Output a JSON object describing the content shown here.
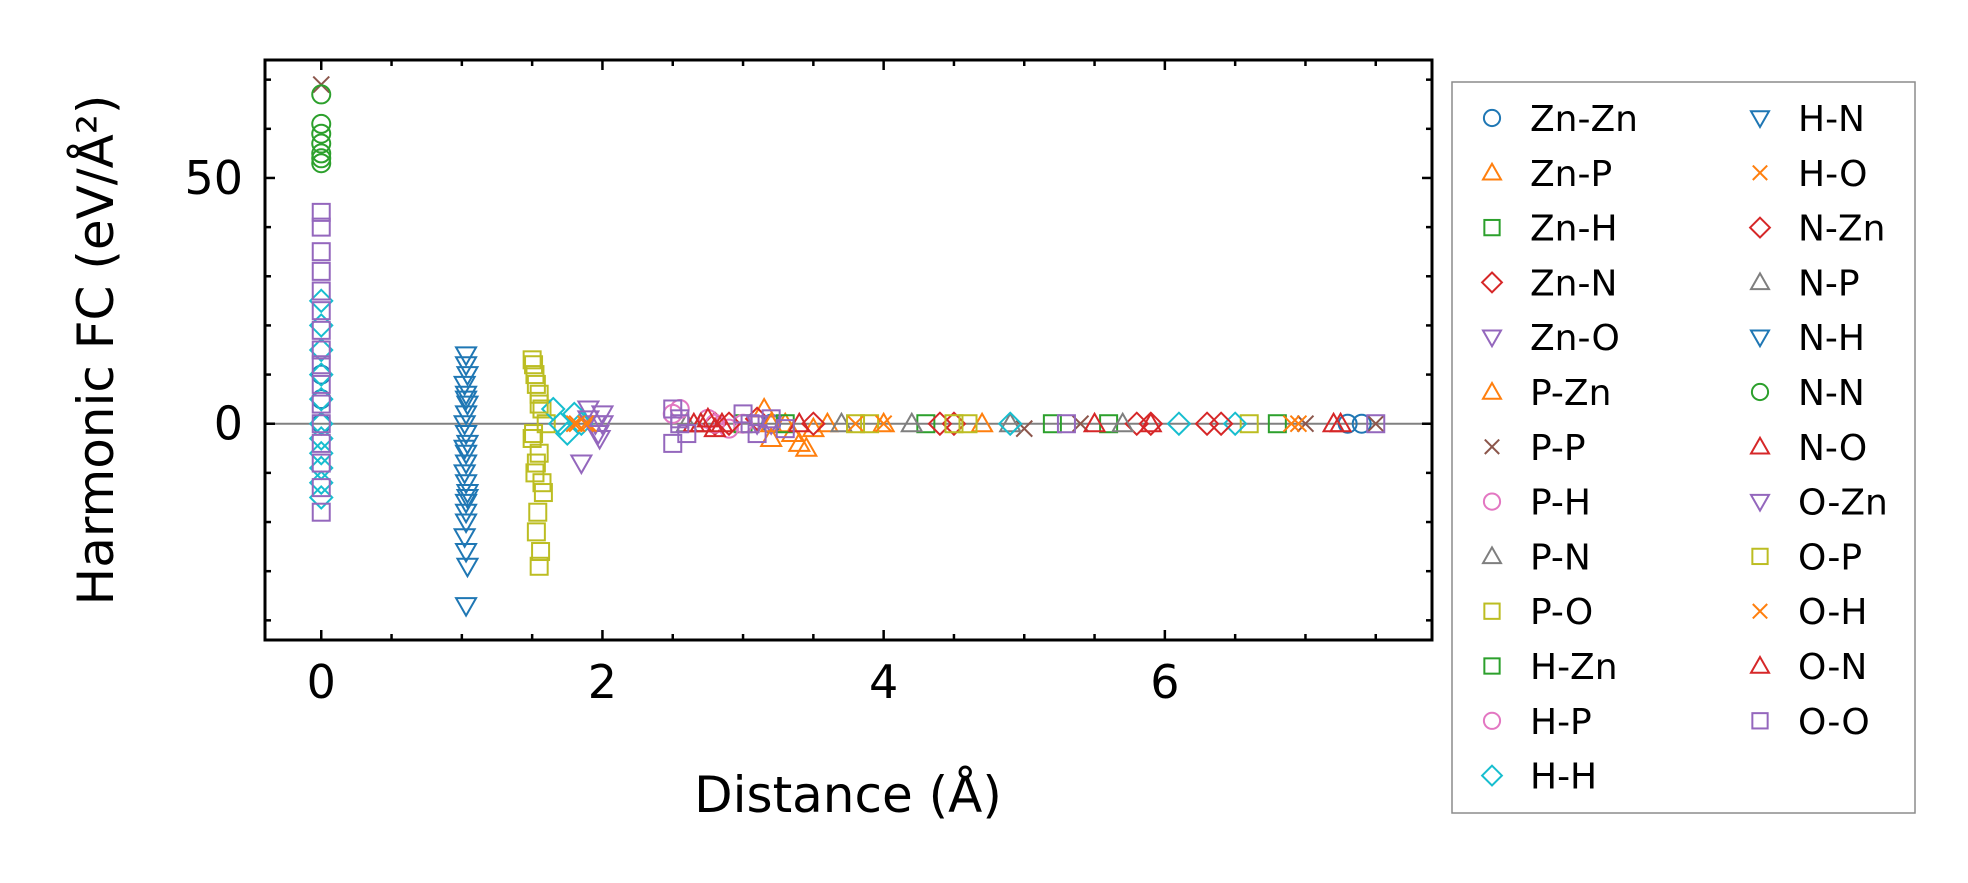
{
  "chart_data": {
    "type": "scatter",
    "title": "",
    "xlabel": "Distance (Å)",
    "ylabel": "Harmonic FC (eV/Å²)",
    "xlim": [
      -0.4,
      7.9
    ],
    "ylim": [
      -44,
      74
    ],
    "xticks": [
      0,
      2,
      4,
      6
    ],
    "xtick_labels": [
      "0",
      "2",
      "4",
      "6"
    ],
    "yticks": [
      0,
      50
    ],
    "ytick_labels": [
      "0",
      "50"
    ],
    "reference_line_y": 0,
    "legend_position": "outside-right",
    "series": [
      {
        "name": "Zn-Zn",
        "marker": "circle",
        "color": "#1f77b4",
        "x": [
          0.0,
          0.0,
          0.0,
          3.2,
          7.3,
          7.4
        ],
        "y": [
          10,
          0,
          5,
          0,
          0,
          0
        ]
      },
      {
        "name": "Zn-P",
        "marker": "triangle-up",
        "color": "#ff7f0e",
        "x": [
          3.15,
          3.2,
          3.3,
          3.4,
          3.5,
          4.0
        ],
        "y": [
          3,
          -3,
          0,
          -4,
          -1,
          0
        ]
      },
      {
        "name": "Zn-H",
        "marker": "square",
        "color": "#2ca02c",
        "x": [
          3.0,
          4.3,
          5.6,
          6.8
        ],
        "y": [
          0,
          0,
          0,
          0
        ]
      },
      {
        "name": "Zn-N",
        "marker": "diamond",
        "color": "#d62728",
        "x": [
          2.8,
          3.1,
          4.5,
          5.9,
          6.3
        ],
        "y": [
          0,
          1,
          0,
          0,
          0
        ]
      },
      {
        "name": "Zn-O",
        "marker": "triangle-down",
        "color": "#9467bd",
        "x": [
          1.9,
          1.95,
          1.98,
          2.0,
          1.85,
          3.2
        ],
        "y": [
          3,
          0,
          -3,
          2,
          -8,
          0
        ]
      },
      {
        "name": "P-Zn",
        "marker": "triangle-up",
        "color": "#ff7f0e",
        "x": [
          3.2,
          3.35,
          3.45,
          3.6,
          4.7
        ],
        "y": [
          0,
          -2,
          -5,
          0,
          0
        ]
      },
      {
        "name": "P-P",
        "marker": "x",
        "color": "#8c564b",
        "x": [
          0.0,
          5.0,
          5.4,
          7.0,
          7.5
        ],
        "y": [
          69,
          -1,
          0,
          0,
          0
        ]
      },
      {
        "name": "P-H",
        "marker": "circle",
        "color": "#e377c2",
        "x": [
          2.5,
          2.8,
          2.9
        ],
        "y": [
          2,
          0,
          -1
        ]
      },
      {
        "name": "P-N",
        "marker": "triangle-up",
        "color": "#7f7f7f",
        "x": [
          2.6,
          3.7,
          4.9
        ],
        "y": [
          0,
          0,
          0
        ]
      },
      {
        "name": "P-O",
        "marker": "square",
        "color": "#bcbd22",
        "x": [
          1.5,
          1.52,
          1.55,
          1.57,
          1.6,
          1.5,
          1.55,
          1.52,
          1.58,
          1.54,
          1.53,
          1.56,
          1.55,
          3.9,
          4.6,
          6.6
        ],
        "y": [
          13,
          10,
          6,
          3,
          0,
          -3,
          -6,
          -10,
          -14,
          -18,
          -22,
          -26,
          -29,
          0,
          0,
          0
        ]
      },
      {
        "name": "H-Zn",
        "marker": "square",
        "color": "#2ca02c",
        "x": [
          3.3,
          5.2
        ],
        "y": [
          0,
          0
        ]
      },
      {
        "name": "H-P",
        "marker": "circle",
        "color": "#e377c2",
        "x": [
          2.55,
          2.75,
          3.0
        ],
        "y": [
          3,
          1,
          0
        ]
      },
      {
        "name": "H-H",
        "marker": "diamond",
        "color": "#17becf",
        "x": [
          0.0,
          0.0,
          0.0,
          0.0,
          0.0,
          0.0,
          0.0,
          0.0,
          0.0,
          0.0,
          0.0,
          1.65,
          1.7,
          1.75,
          1.8,
          1.85,
          4.9,
          6.1,
          6.5
        ],
        "y": [
          25,
          20,
          15,
          10,
          5,
          0,
          -3,
          -6,
          -9,
          -12,
          -15,
          3,
          0,
          -2,
          2,
          0,
          0,
          0,
          0
        ]
      },
      {
        "name": "H-N",
        "marker": "triangle-down",
        "color": "#1f77b4",
        "x": [
          1.03,
          1.03,
          1.04,
          1.02,
          1.03,
          1.04,
          1.03,
          1.02,
          1.03,
          1.04,
          1.03,
          1.03,
          1.02,
          1.03,
          1.04,
          1.03,
          1.03,
          1.03,
          1.02,
          1.03,
          1.04,
          1.03
        ],
        "y": [
          14,
          12,
          10,
          8,
          6,
          4,
          2,
          0,
          -2,
          -4,
          -6,
          -8,
          -10,
          -12,
          -14,
          -16,
          -18,
          -20,
          -23,
          -26,
          -29,
          -37
        ]
      },
      {
        "name": "H-O",
        "marker": "x",
        "color": "#ff7f0e",
        "x": [
          1.8,
          1.9,
          3.8,
          6.9
        ],
        "y": [
          0,
          0,
          0,
          0
        ]
      },
      {
        "name": "N-Zn",
        "marker": "diamond",
        "color": "#d62728",
        "x": [
          2.9,
          3.5,
          4.4,
          5.8,
          6.4
        ],
        "y": [
          0,
          0,
          0,
          0,
          0
        ]
      },
      {
        "name": "N-P",
        "marker": "triangle-up",
        "color": "#7f7f7f",
        "x": [
          2.7,
          4.2,
          5.7
        ],
        "y": [
          0,
          0,
          0
        ]
      },
      {
        "name": "N-H",
        "marker": "triangle-down",
        "color": "#1f77b4",
        "x": [
          1.02,
          1.03,
          1.04
        ],
        "y": [
          -5,
          5,
          -15
        ]
      },
      {
        "name": "N-N",
        "marker": "circle",
        "color": "#2ca02c",
        "x": [
          0.0,
          0.0,
          0.0,
          0.0,
          0.0,
          0.0,
          0.0
        ],
        "y": [
          67,
          61,
          59,
          57,
          55,
          54,
          53
        ]
      },
      {
        "name": "N-O",
        "marker": "triangle-up",
        "color": "#d62728",
        "x": [
          2.65,
          2.75,
          2.8,
          3.4,
          5.9,
          7.2
        ],
        "y": [
          0,
          1,
          -1,
          0,
          0,
          0
        ]
      },
      {
        "name": "O-Zn",
        "marker": "triangle-down",
        "color": "#9467bd",
        "x": [
          1.9,
          1.97,
          2.0,
          3.1
        ],
        "y": [
          1,
          -2,
          0,
          0
        ]
      },
      {
        "name": "O-P",
        "marker": "square",
        "color": "#bcbd22",
        "x": [
          1.51,
          1.53,
          1.55,
          1.51,
          1.53,
          1.57,
          3.8,
          4.5
        ],
        "y": [
          12,
          8,
          4,
          -2,
          -8,
          -12,
          0,
          0
        ]
      },
      {
        "name": "O-H",
        "marker": "x",
        "color": "#ff7f0e",
        "x": [
          1.82,
          1.88,
          4.0,
          6.95
        ],
        "y": [
          0,
          0,
          0,
          0
        ]
      },
      {
        "name": "O-N",
        "marker": "triangle-up",
        "color": "#d62728",
        "x": [
          2.7,
          2.85,
          5.5,
          7.25
        ],
        "y": [
          0,
          0,
          0,
          0
        ]
      },
      {
        "name": "O-O",
        "marker": "square",
        "color": "#9467bd",
        "x": [
          0.0,
          0.0,
          0.0,
          0.0,
          0.0,
          0.0,
          0.0,
          0.0,
          0.0,
          0.0,
          0.0,
          0.0,
          0.0,
          0.0,
          0.0,
          0.0,
          2.5,
          2.55,
          2.6,
          2.5,
          2.55,
          3.0,
          3.05,
          3.1,
          3.2,
          3.3,
          5.3,
          7.5
        ],
        "y": [
          43,
          40,
          35,
          31,
          27,
          23,
          19,
          15,
          12,
          8,
          4,
          0,
          -4,
          -8,
          -13,
          -18,
          3,
          0,
          -2,
          -4,
          1,
          2,
          0,
          -2,
          1,
          -1,
          0,
          0
        ]
      }
    ]
  }
}
